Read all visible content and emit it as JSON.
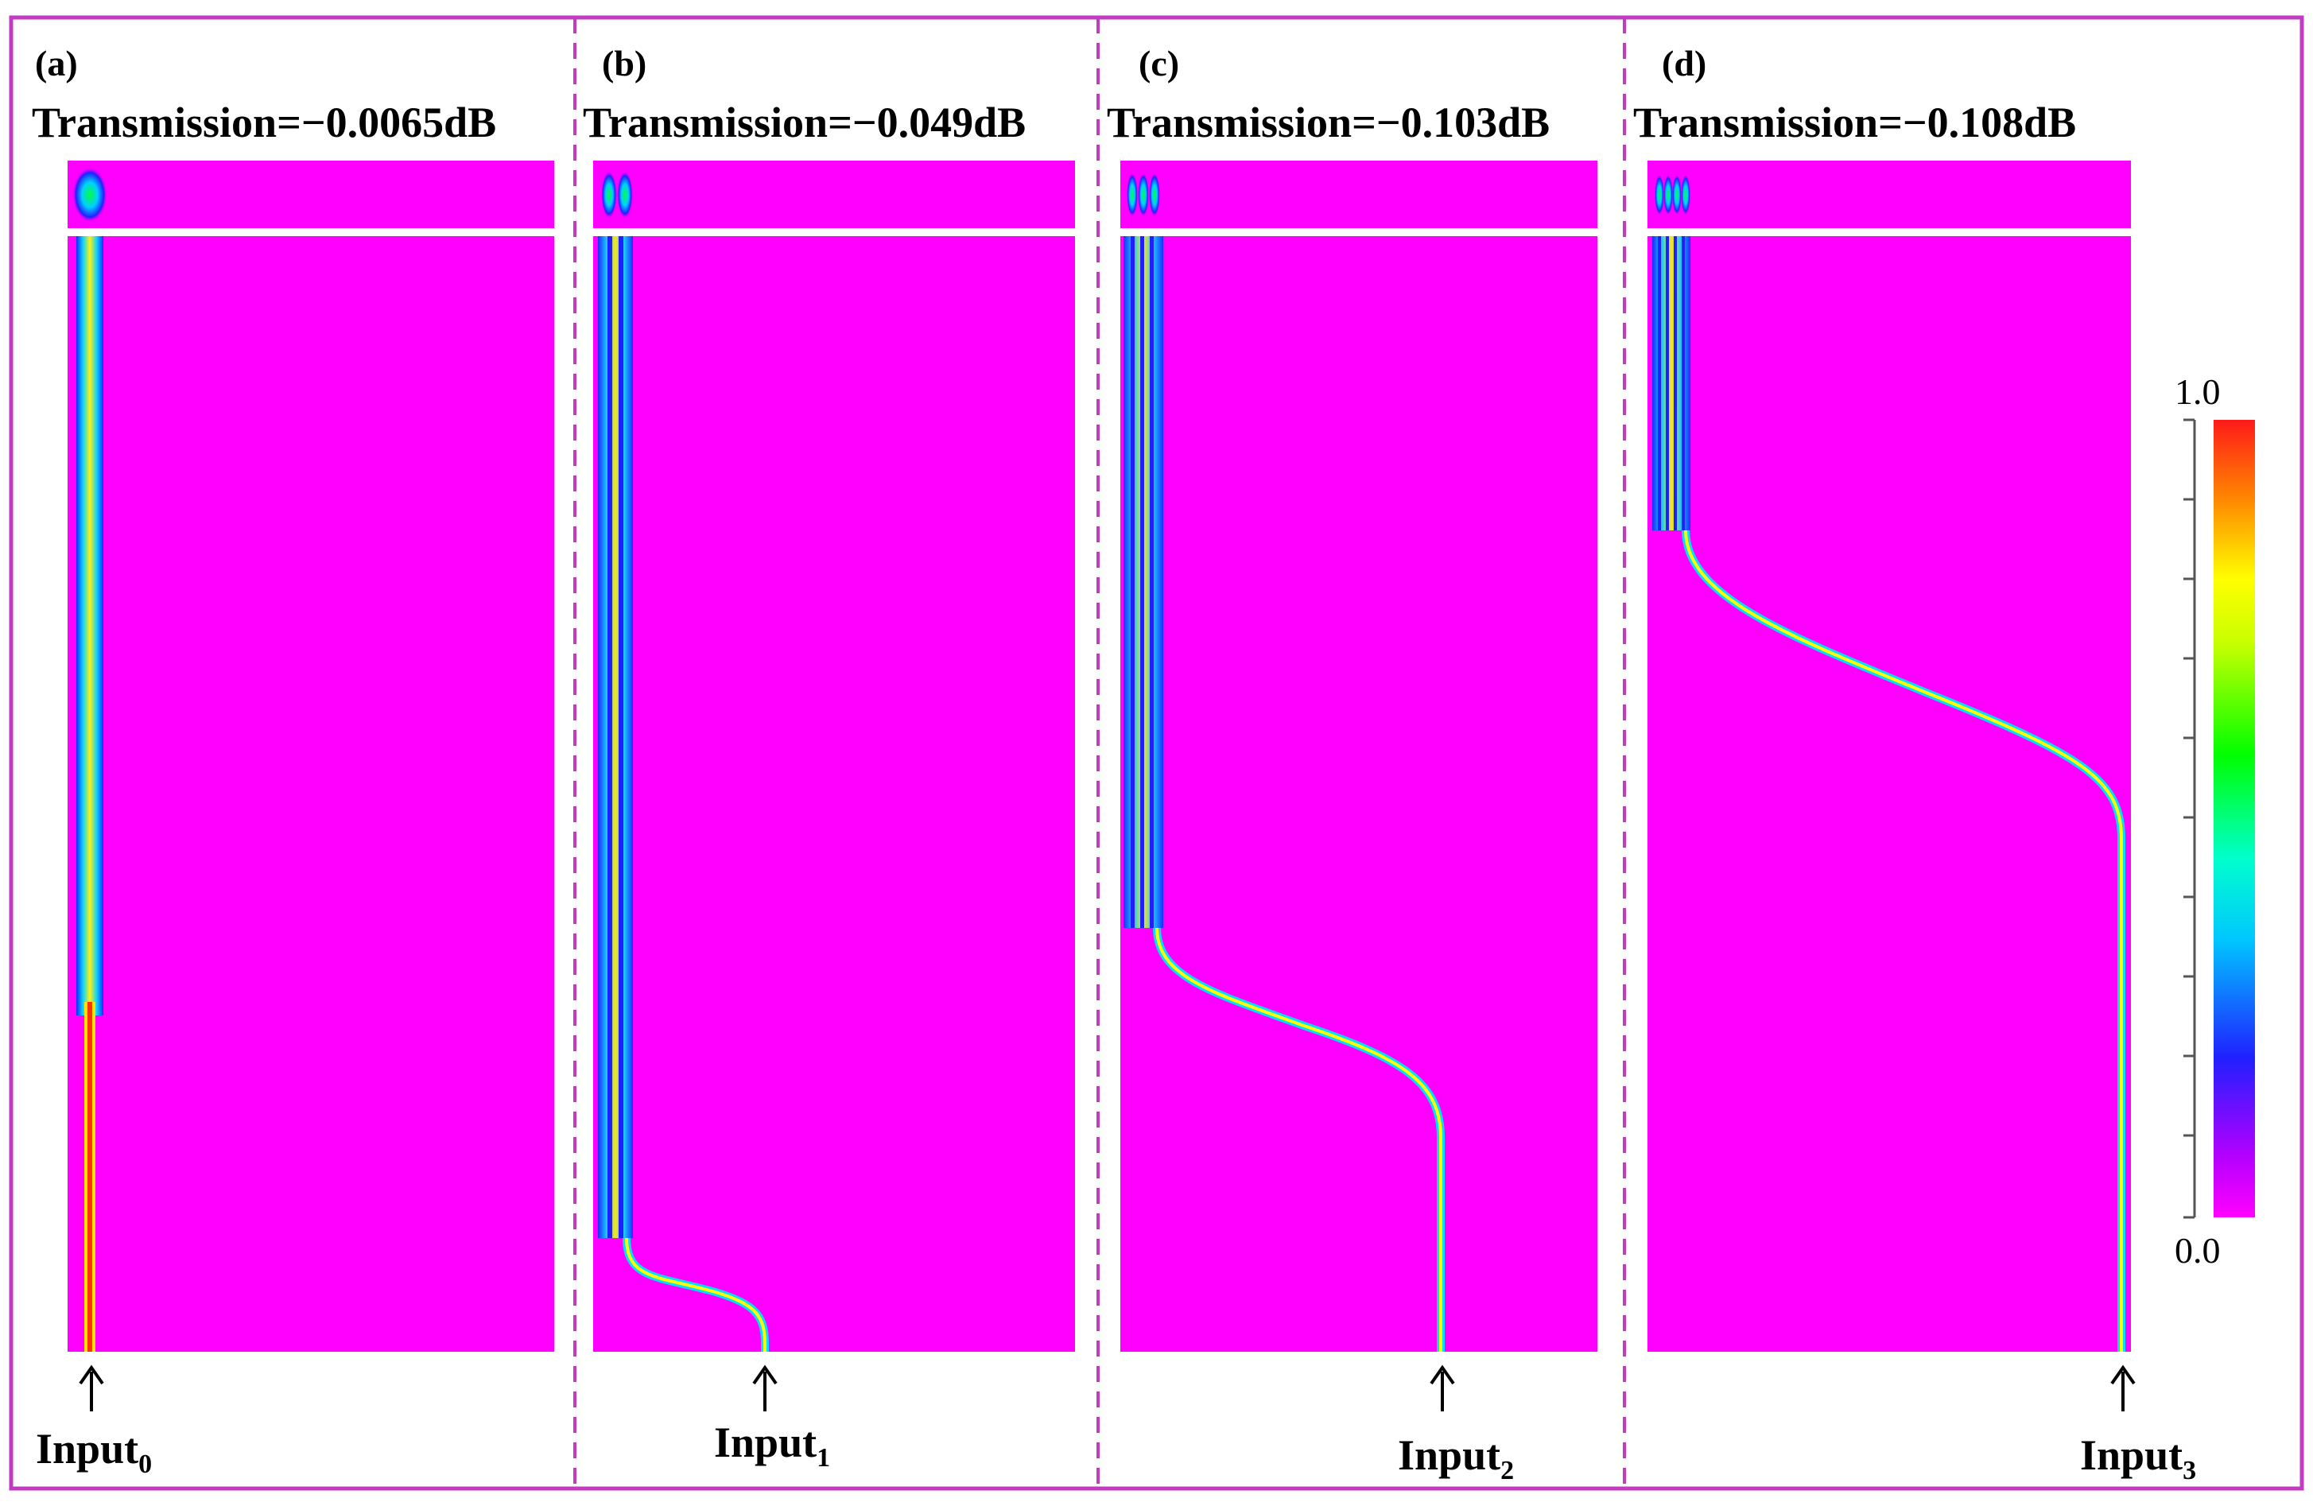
{
  "figure": {
    "panels": [
      {
        "letter": "(a)",
        "transmission": "Transmission=−0.0065dB",
        "input_label": "Input",
        "input_sub": "0"
      },
      {
        "letter": "(b)",
        "transmission": "Transmission=−0.049dB",
        "input_label": "Input",
        "input_sub": "1"
      },
      {
        "letter": "(c)",
        "transmission": "Transmission=−0.103dB",
        "input_label": "Input",
        "input_sub": "2"
      },
      {
        "letter": "(d)",
        "transmission": "Transmission=−0.108dB",
        "input_label": "Input",
        "input_sub": "3"
      }
    ],
    "colorbar": {
      "max_label": "1.0",
      "min_label": "0.0"
    },
    "colors": {
      "background_field": "#ff00ff",
      "frame": "#c23cc2",
      "divider": "#c23cc2"
    }
  }
}
